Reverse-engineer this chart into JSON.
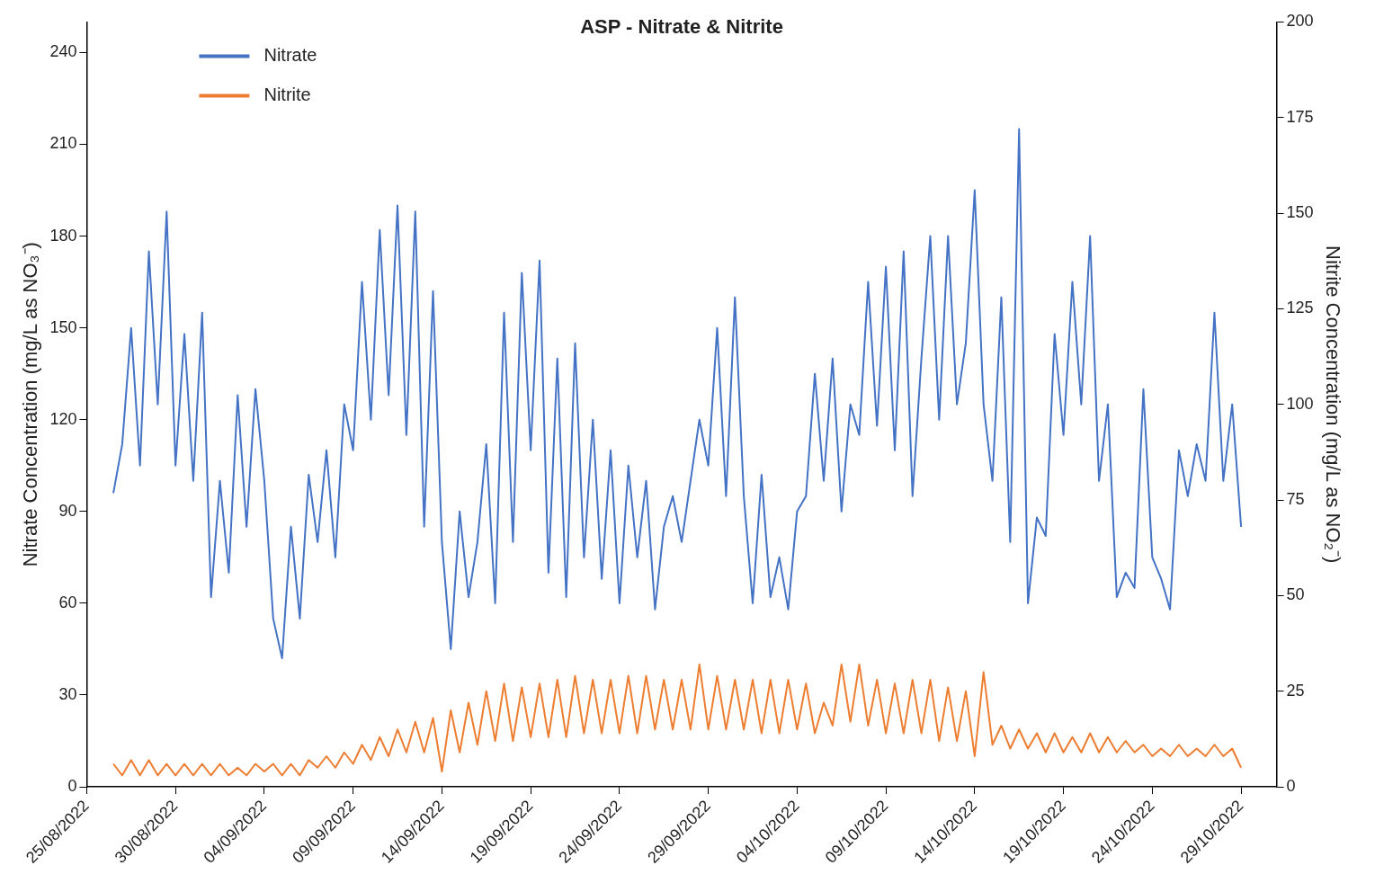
{
  "chart_data": {
    "type": "line",
    "title": "ASP - Nitrate & Nitrite",
    "ylabel": "Nitrate Concentration (mg/L as NO₃⁻)",
    "y2label": "Nitrite Concentration (mg/L as NO₂⁻)",
    "x": [
      "2022-08-26T12:00",
      "2022-08-27T00:00",
      "2022-08-27T12:00",
      "2022-08-28T00:00",
      "2022-08-28T12:00",
      "2022-08-29T00:00",
      "2022-08-29T12:00",
      "2022-08-30T00:00",
      "2022-08-30T12:00",
      "2022-08-31T00:00",
      "2022-08-31T12:00",
      "2022-09-01T00:00",
      "2022-09-01T12:00",
      "2022-09-02T00:00",
      "2022-09-02T12:00",
      "2022-09-03T00:00",
      "2022-09-03T12:00",
      "2022-09-04T00:00",
      "2022-09-04T12:00",
      "2022-09-05T00:00",
      "2022-09-05T12:00",
      "2022-09-06T00:00",
      "2022-09-06T12:00",
      "2022-09-07T00:00",
      "2022-09-07T12:00",
      "2022-09-08T00:00",
      "2022-09-08T12:00",
      "2022-09-09T00:00",
      "2022-09-09T12:00",
      "2022-09-10T00:00",
      "2022-09-10T12:00",
      "2022-09-11T00:00",
      "2022-09-11T12:00",
      "2022-09-12T00:00",
      "2022-09-12T12:00",
      "2022-09-13T00:00",
      "2022-09-13T12:00",
      "2022-09-14T00:00",
      "2022-09-14T12:00",
      "2022-09-15T00:00",
      "2022-09-15T12:00",
      "2022-09-16T00:00",
      "2022-09-16T12:00",
      "2022-09-17T00:00",
      "2022-09-17T12:00",
      "2022-09-18T00:00",
      "2022-09-18T12:00",
      "2022-09-19T00:00",
      "2022-09-19T12:00",
      "2022-09-20T00:00",
      "2022-09-20T12:00",
      "2022-09-21T00:00",
      "2022-09-21T12:00",
      "2022-09-22T00:00",
      "2022-09-22T12:00",
      "2022-09-23T00:00",
      "2022-09-23T12:00",
      "2022-09-24T00:00",
      "2022-09-24T12:00",
      "2022-09-25T00:00",
      "2022-09-25T12:00",
      "2022-09-26T00:00",
      "2022-09-26T12:00",
      "2022-09-27T00:00",
      "2022-09-27T12:00",
      "2022-09-28T00:00",
      "2022-09-28T12:00",
      "2022-09-29T00:00",
      "2022-09-29T12:00",
      "2022-09-30T00:00",
      "2022-09-30T12:00",
      "2022-10-01T00:00",
      "2022-10-01T12:00",
      "2022-10-02T00:00",
      "2022-10-02T12:00",
      "2022-10-03T00:00",
      "2022-10-03T12:00",
      "2022-10-04T00:00",
      "2022-10-04T12:00",
      "2022-10-05T00:00",
      "2022-10-05T12:00",
      "2022-10-06T00:00",
      "2022-10-06T12:00",
      "2022-10-07T00:00",
      "2022-10-07T12:00",
      "2022-10-08T00:00",
      "2022-10-08T12:00",
      "2022-10-09T00:00",
      "2022-10-09T12:00",
      "2022-10-10T00:00",
      "2022-10-10T12:00",
      "2022-10-11T00:00",
      "2022-10-11T12:00",
      "2022-10-12T00:00",
      "2022-10-12T12:00",
      "2022-10-13T00:00",
      "2022-10-13T12:00",
      "2022-10-14T00:00",
      "2022-10-14T12:00",
      "2022-10-15T00:00",
      "2022-10-15T12:00",
      "2022-10-16T00:00",
      "2022-10-16T12:00",
      "2022-10-17T00:00",
      "2022-10-17T12:00",
      "2022-10-18T00:00",
      "2022-10-18T12:00",
      "2022-10-19T00:00",
      "2022-10-19T12:00",
      "2022-10-20T00:00",
      "2022-10-20T12:00",
      "2022-10-21T00:00",
      "2022-10-21T12:00",
      "2022-10-22T00:00",
      "2022-10-22T12:00",
      "2022-10-23T00:00",
      "2022-10-23T12:00",
      "2022-10-24T00:00",
      "2022-10-24T12:00",
      "2022-10-25T00:00",
      "2022-10-25T12:00",
      "2022-10-26T00:00",
      "2022-10-26T12:00",
      "2022-10-27T00:00",
      "2022-10-27T12:00",
      "2022-10-28T00:00",
      "2022-10-28T12:00",
      "2022-10-29T00:00"
    ],
    "series": [
      {
        "name": "Nitrate",
        "color": "#4472c4",
        "values": [
          96,
          112,
          150,
          105,
          175,
          125,
          188,
          105,
          148,
          100,
          155,
          62,
          100,
          70,
          128,
          85,
          130,
          100,
          55,
          42,
          85,
          55,
          102,
          80,
          110,
          75,
          125,
          110,
          165,
          120,
          182,
          128,
          190,
          115,
          188,
          85,
          162,
          80,
          45,
          90,
          62,
          80,
          112,
          60,
          155,
          80,
          168,
          110,
          172,
          70,
          140,
          62,
          145,
          75,
          120,
          68,
          110,
          60,
          105,
          75,
          100,
          58,
          85,
          95,
          80,
          100,
          120,
          105,
          150,
          95,
          160,
          95,
          60,
          102,
          62,
          75,
          58,
          90,
          95,
          135,
          100,
          140,
          90,
          125,
          115,
          165,
          118,
          170,
          110,
          175,
          95,
          140,
          180,
          120,
          180,
          125,
          145,
          195,
          125,
          100,
          160,
          80,
          215,
          60,
          88,
          82,
          148,
          115,
          165,
          125,
          180,
          100,
          125,
          62,
          70,
          65,
          130,
          75,
          68,
          58,
          110,
          95,
          112,
          100,
          155,
          100,
          125,
          85
        ]
      },
      {
        "name": "Nitrite",
        "color": "#ed7d31",
        "axis": "y2",
        "values": [
          6,
          3,
          7,
          3,
          7,
          3,
          6,
          3,
          6,
          3,
          6,
          3,
          6,
          3,
          5,
          3,
          6,
          4,
          6,
          3,
          6,
          3,
          7,
          5,
          8,
          5,
          9,
          6,
          11,
          7,
          13,
          8,
          15,
          9,
          17,
          9,
          18,
          4,
          20,
          9,
          22,
          11,
          25,
          12,
          27,
          12,
          26,
          13,
          27,
          13,
          28,
          13,
          29,
          14,
          28,
          14,
          28,
          14,
          29,
          14,
          29,
          15,
          28,
          15,
          28,
          15,
          32,
          15,
          29,
          15,
          28,
          15,
          28,
          14,
          28,
          14,
          28,
          15,
          27,
          14,
          22,
          16,
          32,
          17,
          32,
          16,
          28,
          14,
          27,
          14,
          28,
          14,
          28,
          12,
          26,
          12,
          25,
          8,
          30,
          11,
          16,
          10,
          15,
          10,
          14,
          9,
          14,
          9,
          13,
          9,
          14,
          9,
          13,
          9,
          12,
          9,
          11,
          8,
          10,
          8,
          11,
          8,
          10,
          8,
          11,
          8,
          10,
          5
        ]
      }
    ],
    "xlim": [
      "2022-08-25",
      "2022-10-31"
    ],
    "xticks": [
      {
        "value": "2022-08-25",
        "label": "25/08/2022"
      },
      {
        "value": "2022-08-30",
        "label": "30/08/2022"
      },
      {
        "value": "2022-09-04",
        "label": "04/09/2022"
      },
      {
        "value": "2022-09-09",
        "label": "09/09/2022"
      },
      {
        "value": "2022-09-14",
        "label": "14/09/2022"
      },
      {
        "value": "2022-09-19",
        "label": "19/09/2022"
      },
      {
        "value": "2022-09-24",
        "label": "24/09/2022"
      },
      {
        "value": "2022-09-29",
        "label": "29/09/2022"
      },
      {
        "value": "2022-10-04",
        "label": "04/10/2022"
      },
      {
        "value": "2022-10-09",
        "label": "09/10/2022"
      },
      {
        "value": "2022-10-14",
        "label": "14/10/2022"
      },
      {
        "value": "2022-10-19",
        "label": "19/10/2022"
      },
      {
        "value": "2022-10-24",
        "label": "24/10/2022"
      },
      {
        "value": "2022-10-29",
        "label": "29/10/2022"
      }
    ],
    "ylim": [
      0,
      250
    ],
    "yticks": [
      0,
      30,
      60,
      90,
      120,
      150,
      180,
      210,
      240
    ],
    "y2lim": [
      0,
      200
    ],
    "y2ticks": [
      0,
      25,
      50,
      75,
      100,
      125,
      150,
      175,
      200
    ],
    "legend": "top left",
    "grid": false,
    "marker": "none",
    "line_style": "solid"
  }
}
